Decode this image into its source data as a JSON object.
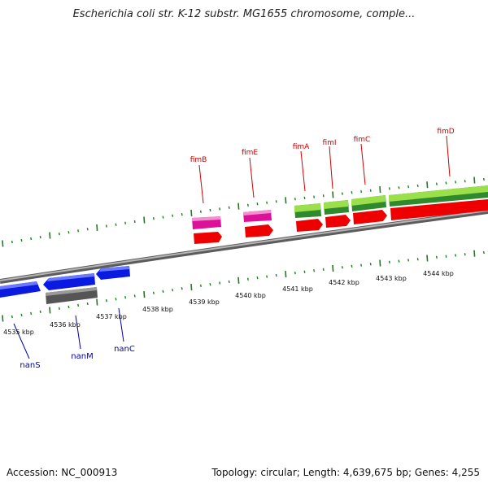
{
  "title": "Escherichia coli str. K-12 substr. MG1655 chromosome, comple...",
  "footer": {
    "accession": "Accession: NC_000913",
    "info": "Topology: circular; Length: 4,639,675 bp; Genes: 4,255"
  },
  "scale_labels": [
    "4535 kbp",
    "4536 kbp",
    "4537 kbp",
    "4538 kbp",
    "4539 kbp",
    "4540 kbp",
    "4541 kbp",
    "4542 kbp",
    "4543 kbp",
    "4544 kbp"
  ],
  "genes_forward": [
    {
      "name": "fimB",
      "color": "#dd1199"
    },
    {
      "name": "fimE",
      "color": "#dd1199"
    },
    {
      "name": "fimA",
      "color": "#8fd13f"
    },
    {
      "name": "fimI",
      "color": "#8fd13f"
    },
    {
      "name": "fimC",
      "color": "#8fd13f"
    },
    {
      "name": "fimD",
      "color": "#8fd13f"
    }
  ],
  "genes_reverse": [
    {
      "name": "nanS",
      "color": "#0a1ae0"
    },
    {
      "name": "nanM",
      "color": "#0a1ae0"
    },
    {
      "name": "nanC",
      "color": "#0a1ae0"
    }
  ],
  "colors": {
    "label_forward": "#cc0000",
    "label_reverse": "#0000aa",
    "tick": "#1d7d1d",
    "backbone": "#8a8a8a",
    "cds": "#ee0000",
    "gene_pink": "#dd1199",
    "gene_green": "#7acb2a",
    "gene_blue": "#0a1ae0",
    "gene_gray": "#666666"
  }
}
